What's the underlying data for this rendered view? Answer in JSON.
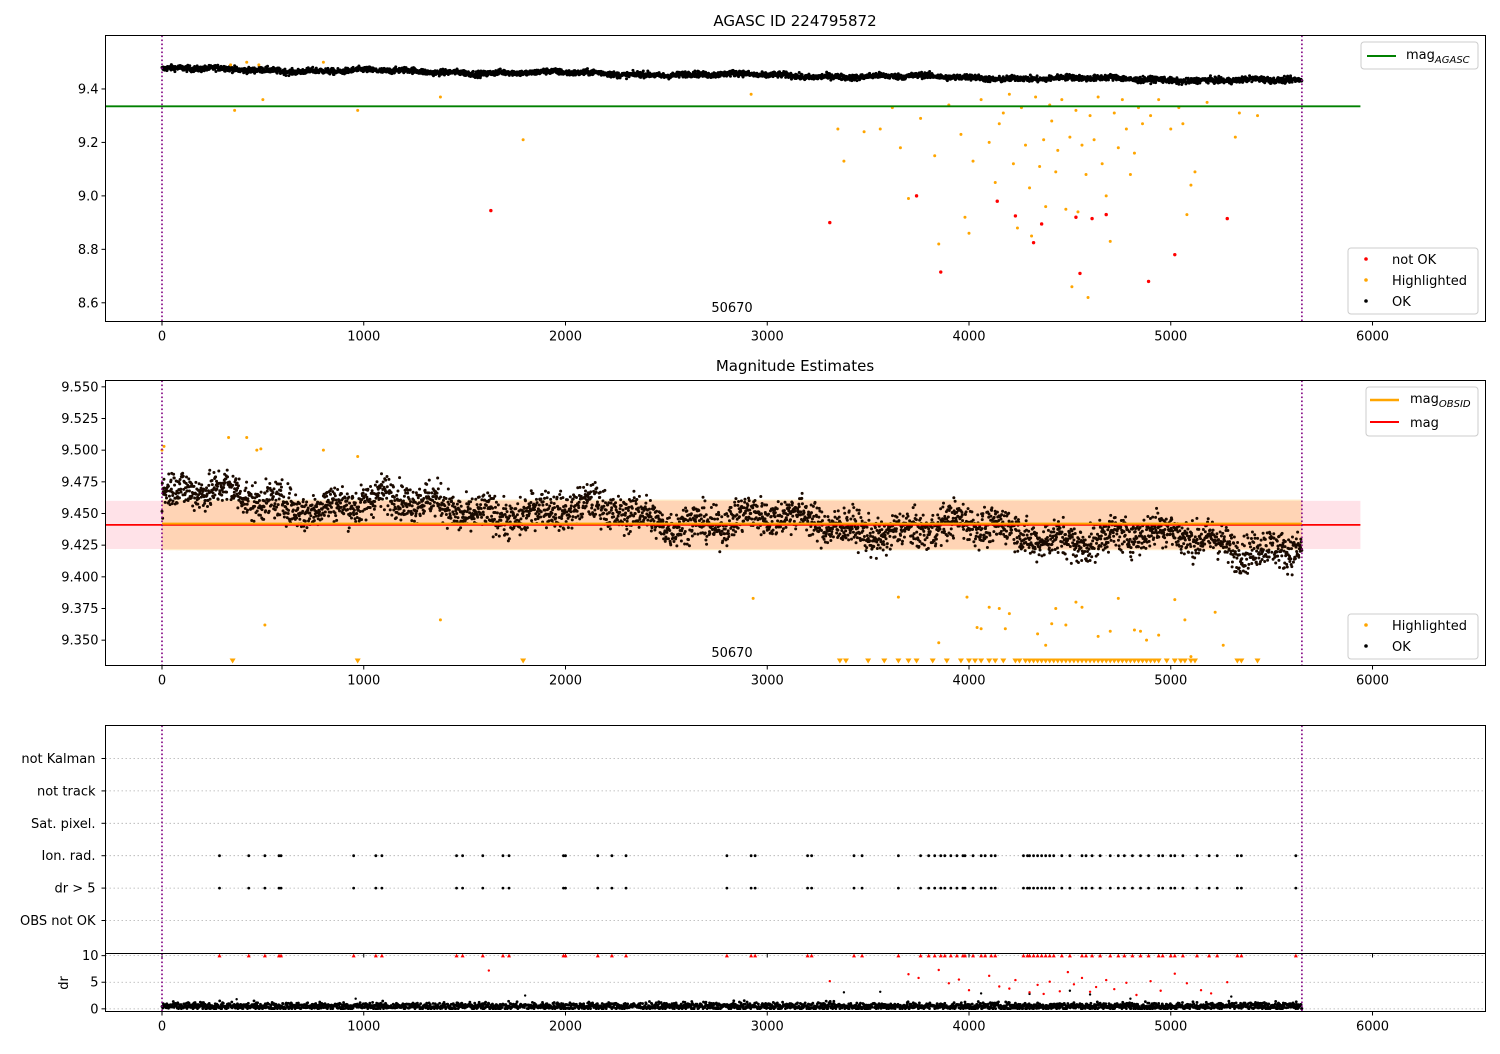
{
  "chart_data": [
    {
      "type": "scatter",
      "title": "AGASC ID 224795872",
      "annotation": "50670",
      "xlim": [
        -280,
        6560
      ],
      "ylim": [
        8.53,
        9.6
      ],
      "xticks": [
        0,
        1000,
        2000,
        3000,
        4000,
        5000,
        6000
      ],
      "yticks": [
        8.6,
        8.8,
        9.0,
        9.2,
        9.4
      ],
      "vlines": [
        0,
        5650
      ],
      "hline": {
        "name": "mag",
        "subscript": "AGASC",
        "y": 9.335,
        "x": [
          -280,
          5940
        ],
        "color": "#008000"
      },
      "ok_band": {
        "start": 0,
        "end": 5650,
        "y_start": 9.475,
        "y_end": 9.43,
        "spread": 0.012,
        "color": "#000000"
      },
      "highlighted": {
        "color": "#ffa500",
        "points": [
          [
            340,
            9.49
          ],
          [
            360,
            9.32
          ],
          [
            420,
            9.5
          ],
          [
            480,
            9.49
          ],
          [
            500,
            9.36
          ],
          [
            800,
            9.5
          ],
          [
            970,
            9.32
          ],
          [
            1380,
            9.37
          ],
          [
            1790,
            9.21
          ],
          [
            2920,
            9.38
          ],
          [
            3350,
            9.25
          ],
          [
            3380,
            9.13
          ],
          [
            3480,
            9.24
          ],
          [
            3560,
            9.25
          ],
          [
            3620,
            9.33
          ],
          [
            3660,
            9.18
          ],
          [
            3700,
            8.99
          ],
          [
            3760,
            9.29
          ],
          [
            3830,
            9.15
          ],
          [
            3850,
            8.82
          ],
          [
            3900,
            9.34
          ],
          [
            3960,
            9.23
          ],
          [
            3980,
            8.92
          ],
          [
            4000,
            8.86
          ],
          [
            4020,
            9.13
          ],
          [
            4060,
            9.36
          ],
          [
            4100,
            9.2
          ],
          [
            4130,
            9.05
          ],
          [
            4150,
            9.27
          ],
          [
            4170,
            9.31
          ],
          [
            4200,
            9.38
          ],
          [
            4220,
            9.12
          ],
          [
            4240,
            8.88
          ],
          [
            4260,
            9.33
          ],
          [
            4280,
            9.19
          ],
          [
            4300,
            9.03
          ],
          [
            4310,
            8.85
          ],
          [
            4330,
            9.37
          ],
          [
            4350,
            9.11
          ],
          [
            4370,
            9.21
          ],
          [
            4380,
            8.96
          ],
          [
            4400,
            9.34
          ],
          [
            4410,
            9.28
          ],
          [
            4430,
            9.09
          ],
          [
            4440,
            9.17
          ],
          [
            4460,
            9.36
          ],
          [
            4480,
            8.95
          ],
          [
            4500,
            9.22
          ],
          [
            4510,
            8.66
          ],
          [
            4530,
            9.32
          ],
          [
            4540,
            8.94
          ],
          [
            4560,
            9.19
          ],
          [
            4580,
            9.08
          ],
          [
            4590,
            8.62
          ],
          [
            4600,
            9.3
          ],
          [
            4620,
            9.21
          ],
          [
            4640,
            9.37
          ],
          [
            4660,
            9.12
          ],
          [
            4680,
            9.0
          ],
          [
            4700,
            8.83
          ],
          [
            4720,
            9.31
          ],
          [
            4740,
            9.18
          ],
          [
            4760,
            9.36
          ],
          [
            4780,
            9.25
          ],
          [
            4800,
            9.08
          ],
          [
            4820,
            9.16
          ],
          [
            4840,
            9.33
          ],
          [
            4860,
            9.27
          ],
          [
            4900,
            9.3
          ],
          [
            4940,
            9.36
          ],
          [
            5000,
            9.25
          ],
          [
            5040,
            9.33
          ],
          [
            5060,
            9.27
          ],
          [
            5080,
            8.93
          ],
          [
            5100,
            9.04
          ],
          [
            5120,
            9.09
          ],
          [
            5180,
            9.35
          ],
          [
            5320,
            9.22
          ],
          [
            5340,
            9.31
          ],
          [
            5430,
            9.3
          ]
        ]
      },
      "not_ok": {
        "color": "#ff0000",
        "points": [
          [
            1630,
            8.945
          ],
          [
            3310,
            8.9
          ],
          [
            3740,
            9.0
          ],
          [
            3860,
            8.715
          ],
          [
            4140,
            8.98
          ],
          [
            4230,
            8.925
          ],
          [
            4320,
            8.825
          ],
          [
            4360,
            8.895
          ],
          [
            4530,
            8.92
          ],
          [
            4550,
            8.71
          ],
          [
            4610,
            8.915
          ],
          [
            4680,
            8.93
          ],
          [
            4890,
            8.68
          ],
          [
            5020,
            8.78
          ],
          [
            5280,
            8.915
          ]
        ]
      },
      "legend": [
        "mag",
        "not OK",
        "Highlighted",
        "OK"
      ]
    },
    {
      "type": "scatter",
      "title": "Magnitude Estimates",
      "annotation": "50670",
      "xlim": [
        -280,
        6560
      ],
      "ylim": [
        9.33,
        9.555
      ],
      "xticks": [
        0,
        1000,
        2000,
        3000,
        4000,
        5000,
        6000
      ],
      "yticks": [
        9.35,
        9.375,
        9.4,
        9.425,
        9.45,
        9.475,
        9.5,
        9.525,
        9.55
      ],
      "vlines": [
        0,
        5650
      ],
      "mag_line": {
        "name": "mag",
        "y": 9.441,
        "x": [
          -280,
          5940
        ],
        "color": "#ff0000"
      },
      "mag_obsid_line": {
        "name": "mag",
        "subscript": "OBSID",
        "y": 9.442,
        "x": [
          0,
          5650
        ],
        "color": "#ffa500"
      },
      "band_obsid": {
        "y": [
          9.421,
          9.461
        ],
        "x": [
          0,
          5650
        ],
        "color": "#ffa500"
      },
      "band_agasc": {
        "y": [
          9.422,
          9.46
        ],
        "x": [
          -280,
          5940
        ],
        "color": "#ff4d6d"
      },
      "ok_band": {
        "start": 0,
        "end": 5650,
        "y_start": 9.465,
        "y_end": 9.425,
        "spread": 0.013,
        "color": "#1a0a00"
      },
      "highlighted": {
        "color": "#ffa500",
        "points": [
          [
            0,
            9.5
          ],
          [
            10,
            9.503
          ],
          [
            330,
            9.51
          ],
          [
            420,
            9.51
          ],
          [
            470,
            9.5
          ],
          [
            490,
            9.501
          ],
          [
            800,
            9.5
          ],
          [
            970,
            9.495
          ],
          [
            510,
            9.362
          ],
          [
            1380,
            9.366
          ],
          [
            2930,
            9.383
          ],
          [
            3650,
            9.384
          ],
          [
            3850,
            9.348
          ],
          [
            3990,
            9.384
          ],
          [
            4040,
            9.36
          ],
          [
            4060,
            9.359
          ],
          [
            4100,
            9.376
          ],
          [
            4150,
            9.375
          ],
          [
            4180,
            9.359
          ],
          [
            4200,
            9.371
          ],
          [
            4340,
            9.355
          ],
          [
            4380,
            9.346
          ],
          [
            4410,
            9.363
          ],
          [
            4430,
            9.375
          ],
          [
            4480,
            9.362
          ],
          [
            4530,
            9.38
          ],
          [
            4560,
            9.376
          ],
          [
            4640,
            9.353
          ],
          [
            4700,
            9.357
          ],
          [
            4740,
            9.383
          ],
          [
            4820,
            9.358
          ],
          [
            4850,
            9.357
          ],
          [
            4880,
            9.35
          ],
          [
            4940,
            9.354
          ],
          [
            5020,
            9.382
          ],
          [
            5070,
            9.366
          ],
          [
            5100,
            9.337
          ],
          [
            5220,
            9.372
          ],
          [
            5260,
            9.346
          ]
        ]
      },
      "clipped_low": [
        350,
        970,
        1790,
        3360,
        3390,
        3500,
        3580,
        3650,
        3700,
        3740,
        3820,
        3890,
        3960,
        4000,
        4030,
        4060,
        4100,
        4130,
        4170,
        4230,
        4250,
        4280,
        4300,
        4320,
        4340,
        4360,
        4380,
        4400,
        4420,
        4440,
        4460,
        4480,
        4500,
        4520,
        4540,
        4560,
        4580,
        4600,
        4620,
        4640,
        4660,
        4680,
        4700,
        4720,
        4740,
        4760,
        4780,
        4800,
        4820,
        4840,
        4860,
        4880,
        4900,
        4920,
        4940,
        4980,
        5020,
        5050,
        5070,
        5100,
        5120,
        5330,
        5350,
        5430
      ],
      "legend": [
        "mag",
        "mag",
        "Highlighted",
        "OK"
      ]
    },
    {
      "type": "scatter",
      "xlim": [
        -280,
        6560
      ],
      "xticks": [
        0,
        1000,
        2000,
        3000,
        4000,
        5000,
        6000
      ],
      "vlines": [
        0,
        5650
      ],
      "flag_labels": [
        "not Kalman",
        "not track",
        "Sat. pixel.",
        "Ion. rad.",
        "dr > 5",
        "OBS not OK"
      ],
      "flag_rows": {
        "Ion. rad.": [
          285,
          430,
          510,
          580,
          590,
          950,
          1060,
          1090,
          1460,
          1490,
          1590,
          1690,
          1720,
          1990,
          2000,
          2160,
          2230,
          2300,
          2800,
          2920,
          2940,
          3200,
          3220,
          3430,
          3470,
          3650,
          3760,
          3800,
          3830,
          3860,
          3880,
          3910,
          3940,
          3970,
          3980,
          4020,
          4060,
          4080,
          4110,
          4130,
          4270,
          4290,
          4300,
          4320,
          4340,
          4360,
          4380,
          4400,
          4420,
          4460,
          4500,
          4560,
          4580,
          4610,
          4650,
          4700,
          4740,
          4770,
          4810,
          4850,
          4890,
          4940,
          4960,
          5000,
          5020,
          5060,
          5130,
          5190,
          5230,
          5330,
          5350,
          5620
        ],
        "dr > 5": [
          285,
          430,
          510,
          580,
          590,
          950,
          1060,
          1090,
          1460,
          1490,
          1590,
          1690,
          1720,
          1990,
          2000,
          2160,
          2230,
          2300,
          2800,
          2920,
          2940,
          3200,
          3220,
          3430,
          3470,
          3650,
          3760,
          3800,
          3830,
          3860,
          3880,
          3910,
          3940,
          3970,
          3980,
          4020,
          4060,
          4080,
          4110,
          4130,
          4270,
          4290,
          4300,
          4320,
          4340,
          4360,
          4380,
          4400,
          4420,
          4460,
          4500,
          4560,
          4580,
          4610,
          4650,
          4700,
          4740,
          4770,
          4810,
          4850,
          4890,
          4940,
          4960,
          5000,
          5020,
          5060,
          5130,
          5190,
          5230,
          5330,
          5350,
          5620
        ]
      }
    },
    {
      "type": "scatter",
      "ylabel": "dr",
      "xlim": [
        -280,
        6560
      ],
      "ylim": [
        -0.5,
        10.4
      ],
      "xticks": [
        0,
        1000,
        2000,
        3000,
        4000,
        5000,
        6000
      ],
      "yticks": [
        0,
        5,
        10
      ],
      "vlines": [
        0,
        5650
      ],
      "ok_band": {
        "start": 0,
        "end": 5650,
        "y": 0.5,
        "spread": 0.35,
        "color": "#000000"
      },
      "capped": {
        "color": "#ff0000",
        "y": 10,
        "x": [
          285,
          430,
          510,
          580,
          590,
          950,
          1060,
          1090,
          1460,
          1490,
          1590,
          1690,
          1720,
          1990,
          2000,
          2160,
          2230,
          2300,
          2800,
          2920,
          2940,
          3200,
          3220,
          3430,
          3470,
          3650,
          3760,
          3800,
          3830,
          3860,
          3880,
          3910,
          3940,
          3970,
          3980,
          4020,
          4060,
          4080,
          4110,
          4130,
          4270,
          4290,
          4300,
          4320,
          4340,
          4360,
          4380,
          4400,
          4420,
          4460,
          4500,
          4560,
          4580,
          4610,
          4650,
          4700,
          4740,
          4770,
          4810,
          4850,
          4890,
          4940,
          4960,
          5000,
          5020,
          5060,
          5130,
          5190,
          5230,
          5330,
          5350,
          5620
        ]
      },
      "mid": {
        "color": "#ff0000",
        "points": [
          [
            1620,
            7.2
          ],
          [
            3310,
            5.2
          ],
          [
            3700,
            6.5
          ],
          [
            3750,
            5.8
          ],
          [
            3850,
            7.3
          ],
          [
            3900,
            4.8
          ],
          [
            3950,
            5.5
          ],
          [
            4000,
            3.5
          ],
          [
            4100,
            6.2
          ],
          [
            4150,
            4.2
          ],
          [
            4200,
            3.8
          ],
          [
            4230,
            5.4
          ],
          [
            4300,
            3.1
          ],
          [
            4340,
            4.5
          ],
          [
            4370,
            2.8
          ],
          [
            4400,
            5.1
          ],
          [
            4450,
            3.3
          ],
          [
            4490,
            6.9
          ],
          [
            4520,
            4.6
          ],
          [
            4560,
            5.8
          ],
          [
            4600,
            3.2
          ],
          [
            4630,
            4.1
          ],
          [
            4680,
            5.4
          ],
          [
            4720,
            3.7
          ],
          [
            4780,
            4.9
          ],
          [
            4830,
            2.6
          ],
          [
            4900,
            5.2
          ],
          [
            4950,
            3.4
          ],
          [
            5020,
            6.6
          ],
          [
            5080,
            4.8
          ],
          [
            5150,
            3.5
          ],
          [
            5200,
            2.9
          ],
          [
            5280,
            5.0
          ]
        ]
      },
      "black_mid": [
        [
          370,
          1.8
        ],
        [
          960,
          1.9
        ],
        [
          1800,
          2.5
        ],
        [
          3380,
          3.1
        ],
        [
          3560,
          3.2
        ],
        [
          4060,
          2.9
        ],
        [
          4300,
          2.8
        ],
        [
          4500,
          3.4
        ],
        [
          4600,
          2.7
        ],
        [
          4800,
          1.9
        ],
        [
          5300,
          2.3
        ]
      ]
    }
  ]
}
